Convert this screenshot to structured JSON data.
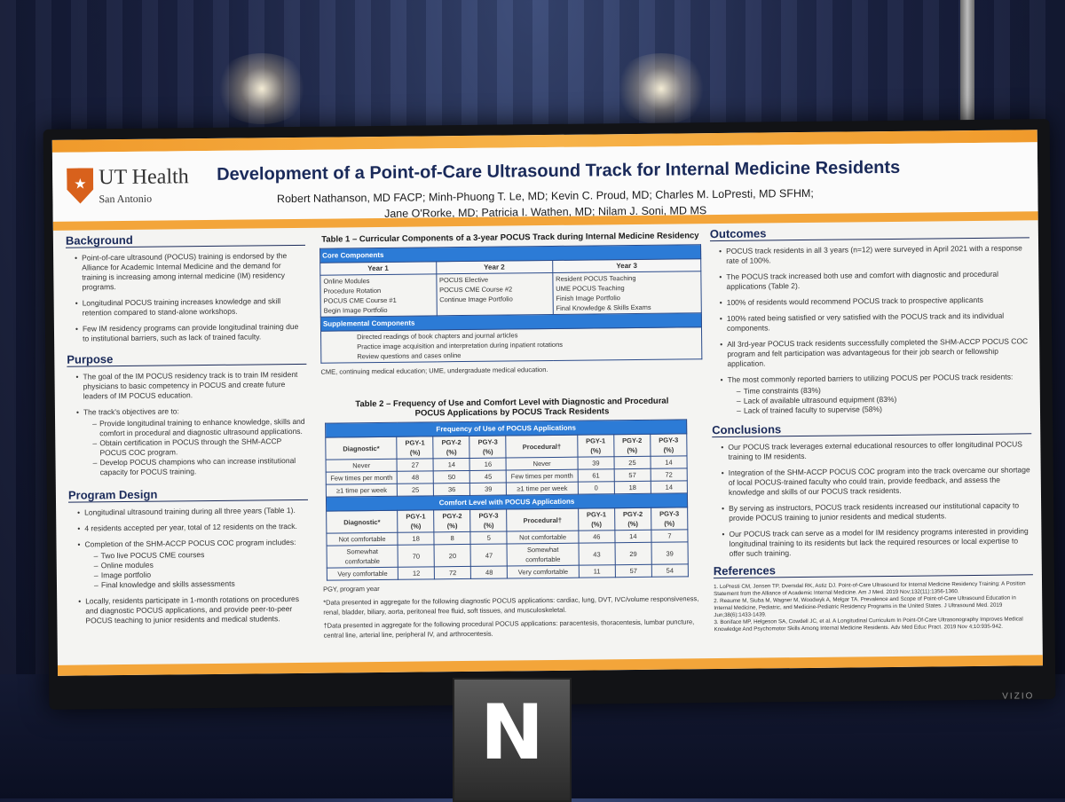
{
  "poster": {
    "logo": {
      "line1": "UT Health",
      "line2": "San Antonio"
    },
    "title": "Development of a Point-of-Care Ultrasound Track for Internal Medicine Residents",
    "authors_line1": "Robert Nathanson, MD FACP; Minh-Phuong T. Le, MD; Kevin C. Proud, MD; Charles M. LoPresti, MD SFHM;",
    "authors_line2": "Jane O'Rorke, MD; Patricia I. Wathen, MD; Nilam J. Soni, MD MS",
    "background": {
      "title": "Background",
      "points": [
        "Point-of-care ultrasound (POCUS) training is endorsed by the Alliance for Academic Internal Medicine and the demand for training is increasing among internal medicine (IM) residency programs.",
        "Longitudinal POCUS training increases knowledge and skill retention compared to stand-alone workshops.",
        "Few IM residency programs can provide longitudinal training due to institutional barriers, such as lack of trained faculty."
      ]
    },
    "purpose": {
      "title": "Purpose",
      "points": [
        "The goal of the IM POCUS residency track is to train IM resident physicians to basic competency in POCUS and create future leaders of IM POCUS education.",
        "The track's objectives are to:"
      ],
      "subpoints": [
        "Provide longitudinal training to enhance knowledge, skills and comfort in procedural and diagnostic ultrasound applications.",
        "Obtain certification in POCUS through the SHM-ACCP POCUS COC program.",
        "Develop POCUS champions who can increase institutional capacity for POCUS training."
      ]
    },
    "program": {
      "title": "Program Design",
      "p1": "Longitudinal ultrasound training during all three years (Table 1).",
      "p2": "4 residents accepted per year, total of 12 residents on the track.",
      "p3": "Completion of the SHM-ACCP POCUS COC program includes:",
      "subs": [
        "Two live POCUS CME courses",
        "Online modules",
        "Image portfolio",
        "Final knowledge and skills assessments"
      ],
      "p4": "Locally, residents participate in 1-month rotations on procedures and diagnostic POCUS applications, and provide peer-to-peer POCUS teaching to junior residents and medical students."
    },
    "table1": {
      "title": "Table 1 – Curricular Components of a 3-year POCUS Track during Internal Medicine Residency",
      "core_label": "Core Components",
      "headers": [
        "Year 1",
        "Year 2",
        "Year 3"
      ],
      "year1": [
        "Online Modules",
        "Procedure Rotation",
        "POCUS CME Course #1",
        "Begin Image Portfolio"
      ],
      "year2": [
        "POCUS Elective",
        "POCUS CME Course #2",
        "Continue Image Portfolio"
      ],
      "year3": [
        "Resident POCUS Teaching",
        "UME POCUS Teaching",
        "Finish Image Portfolio",
        "Final Knowledge & Skills Exams"
      ],
      "supp_label": "Supplemental Components",
      "supp": [
        "Directed readings of book chapters and journal articles",
        "Practice image acquisition and interpretation during inpatient rotations",
        "Review questions and cases online"
      ],
      "note": "CME, continuing medical education; UME, undergraduate medical education."
    },
    "table2": {
      "title": "Table 2 – Frequency of Use and Comfort Level with Diagnostic and Procedural POCUS Applications by POCUS Track Residents",
      "freq_label": "Frequency of Use of POCUS Applications",
      "comfort_label": "Comfort Level with POCUS Applications",
      "diag_label": "Diagnostic*",
      "proc_label": "Procedural†",
      "pgy": [
        "PGY-1 (%)",
        "PGY-2 (%)",
        "PGY-3 (%)"
      ],
      "freq_rows": [
        {
          "label": "Never",
          "d": [
            "27",
            "14",
            "16"
          ],
          "p": [
            "39",
            "25",
            "14"
          ]
        },
        {
          "label": "Few times per month",
          "d": [
            "48",
            "50",
            "45"
          ],
          "p": [
            "61",
            "57",
            "72"
          ]
        },
        {
          "label": "≥1 time per week",
          "d": [
            "25",
            "36",
            "39"
          ],
          "p": [
            "0",
            "18",
            "14"
          ]
        }
      ],
      "comfort_rows": [
        {
          "label": "Not comfortable",
          "d": [
            "18",
            "8",
            "5"
          ],
          "p": [
            "46",
            "14",
            "7"
          ]
        },
        {
          "label": "Somewhat comfortable",
          "d": [
            "70",
            "20",
            "47"
          ],
          "p": [
            "43",
            "29",
            "39"
          ]
        },
        {
          "label": "Very comfortable",
          "d": [
            "12",
            "72",
            "48"
          ],
          "p": [
            "11",
            "57",
            "54"
          ]
        }
      ],
      "note1": "PGY, program year",
      "note2": "*Data presented in aggregate for the following diagnostic POCUS applications: cardiac, lung, DVT, IVC/volume responsiveness, renal, bladder, biliary, aorta, peritoneal free fluid, soft tissues, and musculoskeletal.",
      "note3": "†Data presented in aggregate for the following procedural POCUS applications: paracentesis, thoracentesis, lumbar puncture, central line, arterial line, peripheral IV, and arthrocentesis."
    },
    "outcomes": {
      "title": "Outcomes",
      "points": [
        "POCUS track residents in all 3 years (n=12) were surveyed in April 2021 with a response rate of 100%.",
        "The POCUS track increased both use and comfort with diagnostic and procedural applications (Table 2).",
        "100% of residents would recommend POCUS track to prospective applicants",
        "100% rated being satisfied or very satisfied with the POCUS track and its individual components.",
        "All 3rd-year POCUS track residents successfully completed the SHM-ACCP POCUS COC program and felt participation was advantageous for their job search or fellowship application.",
        "The most commonly reported barriers to utilizing POCUS per POCUS track residents:"
      ],
      "subs": [
        "Time constraints (83%)",
        "Lack of available ultrasound equipment (83%)",
        "Lack of trained faculty to supervise (58%)"
      ]
    },
    "conclusions": {
      "title": "Conclusions",
      "points": [
        "Our POCUS track leverages external educational resources to offer longitudinal POCUS training to IM residents.",
        "Integration of the SHM-ACCP POCUS COC program into the track overcame our shortage of local POCUS-trained faculty who could train, provide feedback, and assess the knowledge and skills of our POCUS track residents.",
        "By serving as instructors, POCUS track residents increased our institutional capacity to provide POCUS training to junior residents and medical students.",
        "Our POCUS track can serve as a model for IM residency programs interested in providing longitudinal training to its residents but lack the required resources or local expertise to offer such training."
      ]
    },
    "references": {
      "title": "References",
      "items": [
        "1. LoPresti CM, Jensen TP, Dversdal RK, Astiz DJ. Point-of-Care Ultrasound for Internal Medicine Residency Training: A Position Statement from the Alliance of Academic Internal Medicine. Am J Med. 2019 Nov;132(11):1356-1360.",
        "2. Reaume M, Siuba M, Wagner M, Woodwyk A, Melgar TA. Prevalence and Scope of Point-of-Care Ultrasound Education in Internal Medicine, Pediatric, and Medicine-Pediatric Residency Programs in the United States. J Ultrasound Med. 2019 Jun;38(6):1433-1439.",
        "3. Boniface MP, Helgeson SA, Cowdell JC, et al. A Longitudinal Curriculum In Point-Of-Care Ultrasonography Improves Medical Knowledge And Psychomotor Skills Among Internal Medicine Residents. Adv Med Educ Pract. 2019 Nov 4;10:935-942."
      ]
    }
  },
  "monitor_brand": "VIZIO",
  "stand_letter": "N"
}
